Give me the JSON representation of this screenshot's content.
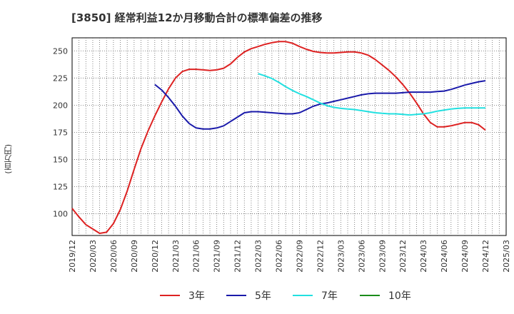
{
  "chart_data": {
    "type": "line",
    "title": "[3850]  経常利益12か月移動合計の標準偏差の推移",
    "ylabel": "(百万円)",
    "xlabel": "",
    "ylim": [
      80,
      262
    ],
    "yticks": [
      100,
      125,
      150,
      175,
      200,
      225,
      250
    ],
    "xlim": [
      "2019-12",
      "2025-03"
    ],
    "xticks": [
      "2019/12",
      "2020/03",
      "2020/06",
      "2020/09",
      "2020/12",
      "2021/03",
      "2021/06",
      "2021/09",
      "2021/12",
      "2022/03",
      "2022/06",
      "2022/09",
      "2022/12",
      "2023/03",
      "2023/06",
      "2023/09",
      "2023/12",
      "2024/03",
      "2024/06",
      "2024/09",
      "2024/12",
      "2025/03"
    ],
    "grid": true,
    "legend_position": "bottom",
    "series": [
      {
        "name": "3年",
        "color": "#dd2222",
        "x": [
          "2019-12",
          "2020-01",
          "2020-02",
          "2020-03",
          "2020-04",
          "2020-05",
          "2020-06",
          "2020-07",
          "2020-08",
          "2020-09",
          "2020-10",
          "2020-11",
          "2020-12",
          "2021-01",
          "2021-02",
          "2021-03",
          "2021-04",
          "2021-05",
          "2021-06",
          "2021-07",
          "2021-08",
          "2021-09",
          "2021-10",
          "2021-11",
          "2021-12",
          "2022-01",
          "2022-02",
          "2022-03",
          "2022-04",
          "2022-05",
          "2022-06",
          "2022-07",
          "2022-08",
          "2022-09",
          "2022-10",
          "2022-11",
          "2022-12",
          "2023-01",
          "2023-02",
          "2023-03",
          "2023-04",
          "2023-05",
          "2023-06",
          "2023-07",
          "2023-08",
          "2023-09",
          "2023-10",
          "2023-11",
          "2023-12",
          "2024-01",
          "2024-02",
          "2024-03",
          "2024-04",
          "2024-05",
          "2024-06",
          "2024-07",
          "2024-08",
          "2024-09",
          "2024-10",
          "2024-11",
          "2024-12"
        ],
        "values": [
          105,
          97,
          90,
          86,
          82,
          83,
          91,
          104,
          121,
          141,
          160,
          176,
          190,
          203,
          215,
          225,
          231,
          233,
          233,
          232.5,
          232,
          232.5,
          234,
          238,
          244,
          249,
          252,
          254,
          256,
          257.5,
          258.5,
          258.5,
          257,
          254,
          251.5,
          249.5,
          248.5,
          248,
          248,
          248.5,
          249,
          249,
          248,
          246,
          242,
          237,
          232,
          226,
          219,
          211,
          202,
          192,
          184,
          180,
          180,
          181,
          182.5,
          184,
          184,
          182,
          177
        ]
      },
      {
        "name": "5年",
        "color": "#1a1aaa",
        "x": [
          "2020-12",
          "2021-01",
          "2021-02",
          "2021-03",
          "2021-04",
          "2021-05",
          "2021-06",
          "2021-07",
          "2021-08",
          "2021-09",
          "2021-10",
          "2021-11",
          "2021-12",
          "2022-01",
          "2022-02",
          "2022-03",
          "2022-04",
          "2022-05",
          "2022-06",
          "2022-07",
          "2022-08",
          "2022-09",
          "2022-10",
          "2022-11",
          "2022-12",
          "2023-01",
          "2023-02",
          "2023-03",
          "2023-04",
          "2023-05",
          "2023-06",
          "2023-07",
          "2023-08",
          "2023-09",
          "2023-10",
          "2023-11",
          "2023-12",
          "2024-01",
          "2024-02",
          "2024-03",
          "2024-04",
          "2024-05",
          "2024-06",
          "2024-07",
          "2024-08",
          "2024-09",
          "2024-10",
          "2024-11",
          "2024-12"
        ],
        "values": [
          219,
          214,
          207,
          199,
          190,
          183,
          179,
          178,
          178,
          179,
          181,
          185,
          189,
          193,
          194,
          194,
          193.5,
          193,
          192.5,
          192,
          192,
          193,
          196,
          199,
          201,
          202,
          203.5,
          205,
          206.5,
          208,
          209.5,
          210.5,
          211,
          211,
          211,
          211,
          211.5,
          212,
          212,
          212,
          212,
          212.5,
          213,
          214.5,
          216.5,
          218.5,
          220,
          221.5,
          222.5
        ]
      },
      {
        "name": "7年",
        "color": "#22e0e0",
        "x": [
          "2022-03",
          "2022-04",
          "2022-05",
          "2022-06",
          "2022-07",
          "2022-08",
          "2022-09",
          "2022-10",
          "2022-11",
          "2022-12",
          "2023-01",
          "2023-02",
          "2023-03",
          "2023-04",
          "2023-05",
          "2023-06",
          "2023-07",
          "2023-08",
          "2023-09",
          "2023-10",
          "2023-11",
          "2023-12",
          "2024-01",
          "2024-02",
          "2024-03",
          "2024-04",
          "2024-05",
          "2024-06",
          "2024-07",
          "2024-08",
          "2024-09",
          "2024-10",
          "2024-11",
          "2024-12"
        ],
        "values": [
          229,
          227,
          224.5,
          221,
          217,
          213.5,
          210.5,
          208,
          205,
          202,
          199.5,
          198,
          197,
          196.5,
          196,
          195,
          194,
          193,
          192.5,
          192,
          192,
          191.5,
          191,
          191.5,
          192,
          193,
          194.5,
          195.5,
          196.5,
          197,
          197.5,
          197.5,
          197.5,
          197.5
        ]
      },
      {
        "name": "10年",
        "color": "#1a8c1a",
        "x": [],
        "values": []
      }
    ]
  }
}
